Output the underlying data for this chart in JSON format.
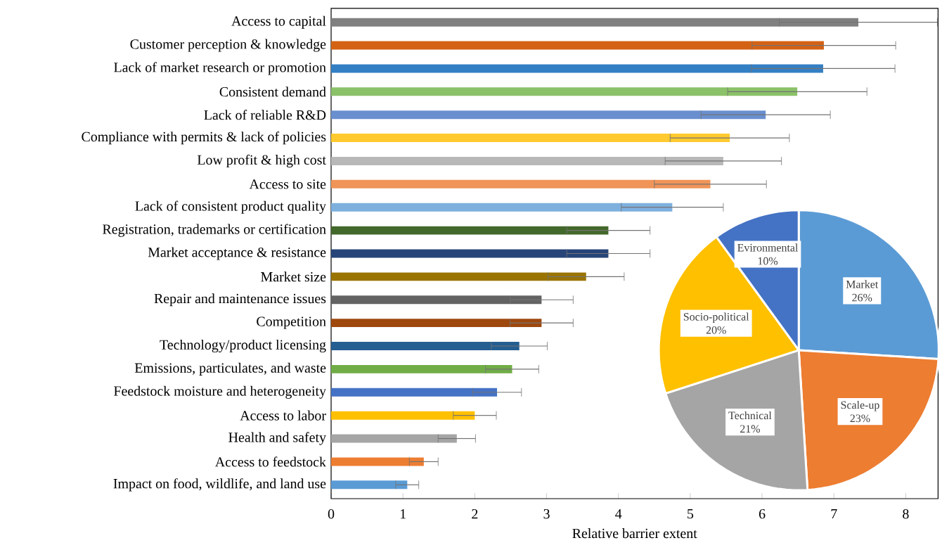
{
  "chart_data": [
    {
      "type": "bar",
      "orientation": "horizontal",
      "xlabel": "Relative barrier extent",
      "categories": [
        "Access to capital",
        "Customer perception & knowledge",
        "Lack of market research or promotion",
        "Consistent demand",
        "Lack of reliable R&D",
        "Compliance with permits & lack of policies",
        "Low profit & high cost",
        "Access to site",
        "Lack of consistent product quality",
        "Registration, trademarks or certification",
        "Market acceptance & resistance",
        "Market size",
        "Repair and maintenance issues",
        "Competition",
        "Technology/product licensing",
        "Emissions, particulates, and waste",
        "Feedstock moisture and heterogeneity",
        "Access to labor",
        "Health and safety",
        "Access to feedstock",
        "Impact on food, wildlife, and land use"
      ],
      "values": [
        7.34,
        6.86,
        6.85,
        6.49,
        6.05,
        5.55,
        5.46,
        5.28,
        4.75,
        3.86,
        3.86,
        3.55,
        2.93,
        2.93,
        2.62,
        2.52,
        2.31,
        2.0,
        1.75,
        1.29,
        1.06
      ],
      "errors": [
        1.1,
        1.0,
        1.0,
        0.97,
        0.9,
        0.83,
        0.81,
        0.78,
        0.71,
        0.58,
        0.58,
        0.53,
        0.44,
        0.44,
        0.39,
        0.37,
        0.34,
        0.3,
        0.26,
        0.2,
        0.16
      ],
      "colors": [
        "#808080",
        "#d46215",
        "#337fc4",
        "#8bc168",
        "#6a8fcf",
        "#ffca2f",
        "#b8b8b8",
        "#f09458",
        "#7eb0de",
        "#43682b",
        "#264478",
        "#9a7400",
        "#636363",
        "#9e480e",
        "#255e91",
        "#70ad47",
        "#4472c4",
        "#ffc000",
        "#a5a5a5",
        "#ed7d31",
        "#5b9bd5"
      ],
      "xlim": [
        0,
        8.45
      ],
      "xticks": [
        0,
        1,
        2,
        3,
        4,
        5,
        6,
        7,
        8
      ]
    },
    {
      "type": "pie",
      "categories": [
        "Market",
        "Scale-up",
        "Technical",
        "Socio-political",
        "Evironmental"
      ],
      "values": [
        26,
        23,
        21,
        20,
        10
      ],
      "value_labels": [
        "26%",
        "23%",
        "21%",
        "20%",
        "10%"
      ],
      "colors": [
        "#5b9bd5",
        "#ed7d31",
        "#a5a5a5",
        "#ffc000",
        "#4472c4"
      ]
    }
  ]
}
